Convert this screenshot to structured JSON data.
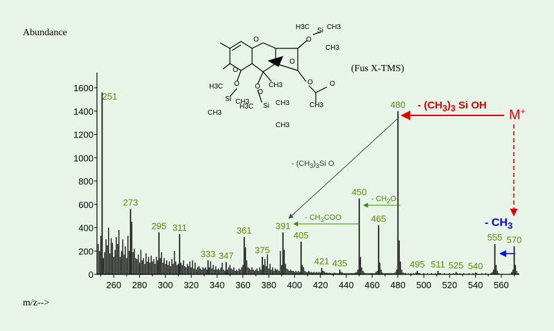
{
  "texts": {
    "ylabel": "Abundance",
    "xlabel": "m/z-->",
    "subtitle": "(Fus X-TMS)",
    "loss_tms_pre": "- (CH",
    "loss_tms_sub": "3",
    "loss_tms_post": ")",
    "loss_tms_sub2": "3",
    "loss_tms_tail": " Si OH",
    "mplus": "M",
    "mplus_sup": "+",
    "loss_ch3_pre": "- CH",
    "loss_ch3_sub": "3",
    "ann_tmsio_pre": "- (CH",
    "ann_tmsio_sub1": "3",
    "ann_tmsio_mid": ")",
    "ann_tmsio_sub2": "3",
    "ann_tmsio_post": "Si O",
    "ann_ch2o_pre": "- CH",
    "ann_ch2o_sub": "2",
    "ann_ch2o_post": "O",
    "ann_ch3coo_pre": "- CH",
    "ann_ch3coo_sub": "3",
    "ann_ch3coo_post": "COO"
  },
  "colors": {
    "background": "#e8f4e8",
    "peak_label": "#5a8a00",
    "arrow_red": "#e00000",
    "arrow_green": "#3a8a00",
    "arrow_blue": "#0000ee",
    "axis": "#000000"
  },
  "structure": {
    "type": "chemical-structure-drawing",
    "atom_labels": [
      "H3C",
      "Si",
      "CH3",
      "CH3",
      "O",
      "O",
      "O",
      "O",
      "O",
      "O",
      "O",
      "O",
      "CH3",
      "H3C",
      "Si",
      "CH3",
      "CH3",
      "O",
      "H3C",
      "Si",
      "CH3",
      "CH3",
      "CH3"
    ]
  },
  "chart_data": {
    "type": "bar",
    "title": "",
    "subtitle": "(Fus X-TMS)",
    "xlabel": "m/z-->",
    "ylabel": "Abundance",
    "xlim": [
      247,
      574
    ],
    "ylim": [
      0,
      1600
    ],
    "xticks": [
      260,
      280,
      300,
      320,
      340,
      360,
      380,
      400,
      420,
      440,
      460,
      480,
      500,
      520,
      540,
      560
    ],
    "yticks": [
      0,
      200,
      400,
      600,
      800,
      1000,
      1200,
      1400,
      1600
    ],
    "labeled_peaks": [
      {
        "mz": 251,
        "abundance": 1560,
        "label": "251"
      },
      {
        "mz": 273,
        "abundance": 560,
        "label": "273"
      },
      {
        "mz": 295,
        "abundance": 360,
        "label": "295"
      },
      {
        "mz": 311,
        "abundance": 345,
        "label": "311"
      },
      {
        "mz": 333,
        "abundance": 120,
        "label": "333"
      },
      {
        "mz": 347,
        "abundance": 105,
        "label": "347"
      },
      {
        "mz": 361,
        "abundance": 320,
        "label": "361"
      },
      {
        "mz": 375,
        "abundance": 150,
        "label": "375"
      },
      {
        "mz": 391,
        "abundance": 360,
        "label": "391"
      },
      {
        "mz": 405,
        "abundance": 280,
        "label": "405"
      },
      {
        "mz": 421,
        "abundance": 55,
        "label": "421"
      },
      {
        "mz": 435,
        "abundance": 40,
        "label": "435"
      },
      {
        "mz": 450,
        "abundance": 650,
        "label": "450"
      },
      {
        "mz": 465,
        "abundance": 420,
        "label": "465"
      },
      {
        "mz": 480,
        "abundance": 1400,
        "label": "480"
      },
      {
        "mz": 495,
        "abundance": 30,
        "label": "495"
      },
      {
        "mz": 511,
        "abundance": 30,
        "label": "511"
      },
      {
        "mz": 525,
        "abundance": 20,
        "label": "525"
      },
      {
        "mz": 540,
        "abundance": 15,
        "label": "540"
      },
      {
        "mz": 555,
        "abundance": 260,
        "label": "555"
      },
      {
        "mz": 570,
        "abundance": 240,
        "label": "570"
      }
    ],
    "minor_peaks": [
      [
        248,
        260
      ],
      [
        249,
        200
      ],
      [
        250,
        330
      ],
      [
        252,
        140
      ],
      [
        253,
        190
      ],
      [
        254,
        300
      ],
      [
        255,
        250
      ],
      [
        256,
        400
      ],
      [
        257,
        180
      ],
      [
        258,
        310
      ],
      [
        259,
        270
      ],
      [
        260,
        150
      ],
      [
        261,
        210
      ],
      [
        262,
        320
      ],
      [
        263,
        260
      ],
      [
        264,
        380
      ],
      [
        265,
        150
      ],
      [
        266,
        200
      ],
      [
        267,
        300
      ],
      [
        268,
        170
      ],
      [
        269,
        240
      ],
      [
        270,
        140
      ],
      [
        271,
        330
      ],
      [
        272,
        200
      ],
      [
        274,
        450
      ],
      [
        275,
        190
      ],
      [
        276,
        220
      ],
      [
        277,
        140
      ],
      [
        278,
        130
      ],
      [
        279,
        170
      ],
      [
        280,
        100
      ],
      [
        281,
        210
      ],
      [
        282,
        120
      ],
      [
        283,
        140
      ],
      [
        284,
        90
      ],
      [
        285,
        180
      ],
      [
        286,
        110
      ],
      [
        287,
        150
      ],
      [
        288,
        100
      ],
      [
        289,
        160
      ],
      [
        290,
        110
      ],
      [
        291,
        130
      ],
      [
        292,
        90
      ],
      [
        293,
        150
      ],
      [
        294,
        120
      ],
      [
        296,
        140
      ],
      [
        297,
        190
      ],
      [
        298,
        100
      ],
      [
        299,
        140
      ],
      [
        300,
        90
      ],
      [
        301,
        120
      ],
      [
        302,
        80
      ],
      [
        303,
        110
      ],
      [
        304,
        70
      ],
      [
        305,
        130
      ],
      [
        306,
        90
      ],
      [
        307,
        200
      ],
      [
        308,
        110
      ],
      [
        309,
        80
      ],
      [
        310,
        90
      ],
      [
        312,
        100
      ],
      [
        313,
        80
      ],
      [
        314,
        120
      ],
      [
        315,
        70
      ],
      [
        316,
        60
      ],
      [
        317,
        90
      ],
      [
        318,
        70
      ],
      [
        319,
        110
      ],
      [
        320,
        60
      ],
      [
        321,
        120
      ],
      [
        322,
        50
      ],
      [
        323,
        100
      ],
      [
        324,
        40
      ],
      [
        325,
        60
      ],
      [
        326,
        70
      ],
      [
        327,
        50
      ],
      [
        328,
        40
      ],
      [
        329,
        60
      ],
      [
        330,
        50
      ],
      [
        331,
        60
      ],
      [
        332,
        40
      ],
      [
        334,
        60
      ],
      [
        335,
        110
      ],
      [
        336,
        50
      ],
      [
        337,
        80
      ],
      [
        338,
        40
      ],
      [
        339,
        70
      ],
      [
        340,
        40
      ],
      [
        341,
        50
      ],
      [
        342,
        40
      ],
      [
        343,
        60
      ],
      [
        344,
        100
      ],
      [
        345,
        40
      ],
      [
        346,
        30
      ],
      [
        348,
        40
      ],
      [
        349,
        60
      ],
      [
        350,
        80
      ],
      [
        351,
        50
      ],
      [
        352,
        40
      ],
      [
        353,
        60
      ],
      [
        354,
        30
      ],
      [
        355,
        40
      ],
      [
        356,
        30
      ],
      [
        357,
        50
      ],
      [
        358,
        40
      ],
      [
        359,
        60
      ],
      [
        360,
        80
      ],
      [
        362,
        230
      ],
      [
        363,
        120
      ],
      [
        364,
        60
      ],
      [
        365,
        50
      ],
      [
        366,
        40
      ],
      [
        367,
        60
      ],
      [
        368,
        40
      ],
      [
        369,
        30
      ],
      [
        370,
        40
      ],
      [
        371,
        50
      ],
      [
        372,
        30
      ],
      [
        373,
        60
      ],
      [
        374,
        40
      ],
      [
        376,
        80
      ],
      [
        377,
        130
      ],
      [
        378,
        70
      ],
      [
        379,
        170
      ],
      [
        380,
        50
      ],
      [
        381,
        90
      ],
      [
        382,
        40
      ],
      [
        383,
        60
      ],
      [
        384,
        30
      ],
      [
        385,
        50
      ],
      [
        386,
        40
      ],
      [
        387,
        40
      ],
      [
        388,
        30
      ],
      [
        389,
        200
      ],
      [
        390,
        80
      ],
      [
        392,
        210
      ],
      [
        393,
        90
      ],
      [
        394,
        50
      ],
      [
        395,
        40
      ],
      [
        396,
        30
      ],
      [
        397,
        40
      ],
      [
        398,
        30
      ],
      [
        399,
        30
      ],
      [
        400,
        20
      ],
      [
        401,
        30
      ],
      [
        402,
        20
      ],
      [
        403,
        30
      ],
      [
        404,
        20
      ],
      [
        406,
        80
      ],
      [
        407,
        60
      ],
      [
        408,
        30
      ],
      [
        409,
        20
      ],
      [
        410,
        20
      ],
      [
        411,
        30
      ],
      [
        412,
        20
      ],
      [
        413,
        20
      ],
      [
        414,
        15
      ],
      [
        415,
        20
      ],
      [
        416,
        15
      ],
      [
        417,
        20
      ],
      [
        418,
        15
      ],
      [
        419,
        20
      ],
      [
        420,
        15
      ],
      [
        422,
        30
      ],
      [
        423,
        25
      ],
      [
        424,
        15
      ],
      [
        425,
        15
      ],
      [
        426,
        10
      ],
      [
        427,
        15
      ],
      [
        428,
        10
      ],
      [
        429,
        10
      ],
      [
        430,
        10
      ],
      [
        431,
        15
      ],
      [
        432,
        10
      ],
      [
        433,
        10
      ],
      [
        434,
        10
      ],
      [
        436,
        20
      ],
      [
        437,
        15
      ],
      [
        438,
        10
      ],
      [
        439,
        10
      ],
      [
        440,
        10
      ],
      [
        441,
        10
      ],
      [
        442,
        10
      ],
      [
        443,
        10
      ],
      [
        444,
        10
      ],
      [
        445,
        10
      ],
      [
        446,
        10
      ],
      [
        447,
        15
      ],
      [
        448,
        20
      ],
      [
        449,
        40
      ],
      [
        451,
        150
      ],
      [
        452,
        60
      ],
      [
        453,
        30
      ],
      [
        454,
        15
      ],
      [
        455,
        10
      ],
      [
        456,
        10
      ],
      [
        457,
        10
      ],
      [
        458,
        10
      ],
      [
        459,
        10
      ],
      [
        460,
        10
      ],
      [
        461,
        10
      ],
      [
        462,
        10
      ],
      [
        463,
        20
      ],
      [
        464,
        30
      ],
      [
        466,
        100
      ],
      [
        467,
        40
      ],
      [
        468,
        15
      ],
      [
        469,
        10
      ],
      [
        470,
        10
      ],
      [
        471,
        10
      ],
      [
        472,
        10
      ],
      [
        473,
        10
      ],
      [
        474,
        10
      ],
      [
        475,
        10
      ],
      [
        476,
        10
      ],
      [
        477,
        10
      ],
      [
        478,
        20
      ],
      [
        479,
        40
      ],
      [
        481,
        290
      ],
      [
        482,
        110
      ],
      [
        483,
        40
      ],
      [
        484,
        15
      ],
      [
        485,
        10
      ],
      [
        486,
        10
      ],
      [
        488,
        10
      ],
      [
        490,
        10
      ],
      [
        492,
        10
      ],
      [
        494,
        15
      ],
      [
        496,
        10
      ],
      [
        497,
        10
      ],
      [
        500,
        10
      ],
      [
        503,
        10
      ],
      [
        506,
        10
      ],
      [
        509,
        10
      ],
      [
        512,
        10
      ],
      [
        513,
        10
      ],
      [
        516,
        10
      ],
      [
        520,
        10
      ],
      [
        523,
        10
      ],
      [
        526,
        10
      ],
      [
        528,
        10
      ],
      [
        531,
        10
      ],
      [
        535,
        10
      ],
      [
        538,
        10
      ],
      [
        541,
        10
      ],
      [
        545,
        10
      ],
      [
        548,
        10
      ],
      [
        552,
        10
      ],
      [
        553,
        20
      ],
      [
        554,
        40
      ],
      [
        556,
        80
      ],
      [
        557,
        30
      ],
      [
        558,
        10
      ],
      [
        568,
        20
      ],
      [
        569,
        40
      ],
      [
        571,
        80
      ],
      [
        572,
        30
      ],
      [
        573,
        10
      ]
    ]
  }
}
